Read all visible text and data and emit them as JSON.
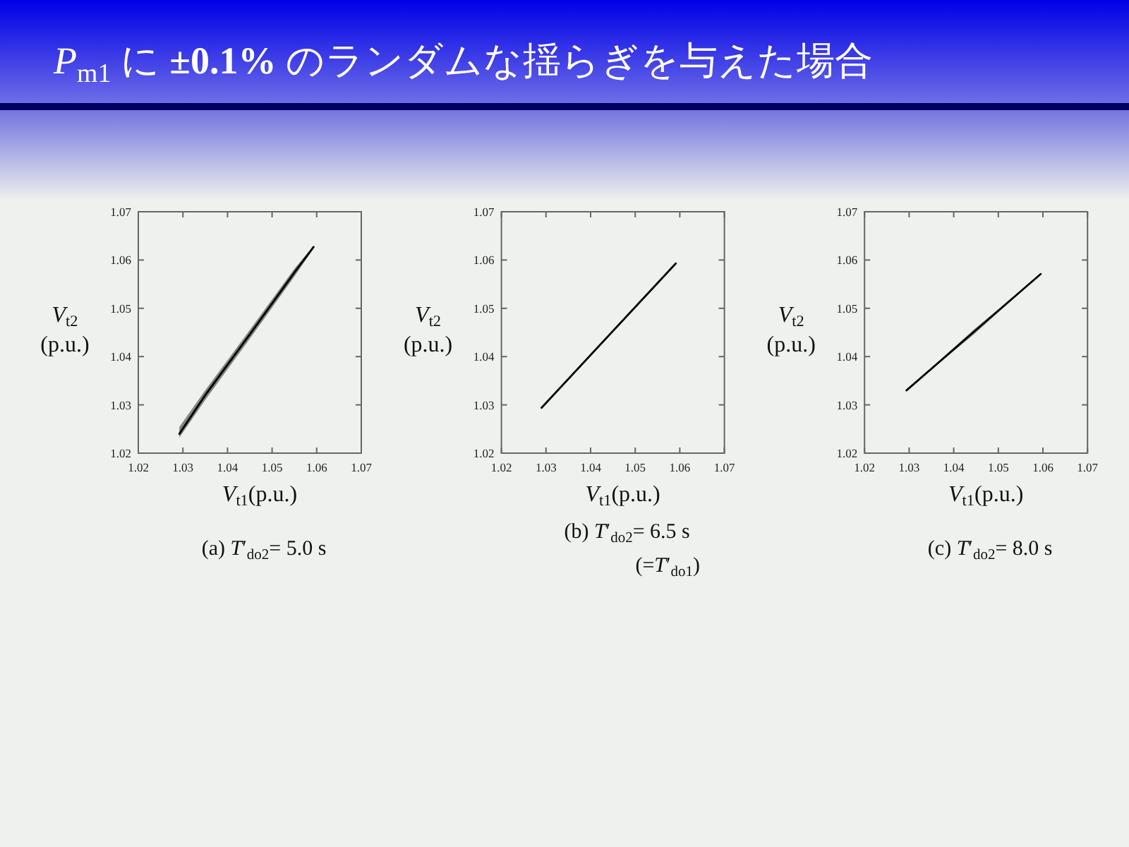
{
  "chart_data": [
    {
      "type": "line",
      "title": "*P*$_{m1}$ に **±0.1%** のランダムな揺らぎを与えた場合",
      "xlabel": "*V*$_{t1}$(p.u.)",
      "ylabel": "*V*$_{t2}$ (p.u.)",
      "annotations": [
        "(a) *T*′$_{do2}$= 5.0 s"
      ],
      "xlim": [
        1.02,
        1.07
      ],
      "ylim": [
        1.02,
        1.07
      ],
      "xticks": [
        1.02,
        1.03,
        1.04,
        1.05,
        1.06,
        1.07
      ],
      "yticks": [
        1.02,
        1.03,
        1.04,
        1.05,
        1.06,
        1.07
      ],
      "series": [
        {
          "color": "#000000",
          "x": [
            1.0292,
            1.035,
            1.045,
            1.055,
            1.0593
          ],
          "values": [
            1.024,
            1.032,
            1.0446,
            1.0574,
            1.0627
          ],
          "lower": [
            1.0232,
            1.031,
            1.0437,
            1.0566,
            1.0624
          ],
          "upper": [
            1.0254,
            1.033,
            1.0455,
            1.0582,
            1.0629
          ]
        }
      ]
    },
    {
      "type": "line",
      "xlabel": "*V*$_{t1}$(p.u.)",
      "ylabel": "*V*$_{t2}$ (p.u.)",
      "annotations": [
        "(b) *T*′$_{do2}$= 6.5 s",
        "(=*T*′$_{do1}$)"
      ],
      "xlim": [
        1.02,
        1.07
      ],
      "ylim": [
        1.02,
        1.07
      ],
      "xticks": [
        1.02,
        1.03,
        1.04,
        1.05,
        1.06,
        1.07
      ],
      "yticks": [
        1.02,
        1.03,
        1.04,
        1.05,
        1.06,
        1.07
      ],
      "series": [
        {
          "color": "#000000",
          "x": [
            1.029,
            1.0591
          ],
          "values": [
            1.0294,
            1.0593
          ]
        }
      ]
    },
    {
      "type": "line",
      "xlabel": "*V*$_{t1}$(p.u.)",
      "ylabel": "*V*$_{t2}$ (p.u.)",
      "annotations": [
        "(c) *T*′$_{do2}$= 8.0 s"
      ],
      "xlim": [
        1.02,
        1.07
      ],
      "ylim": [
        1.02,
        1.07
      ],
      "xticks": [
        1.02,
        1.03,
        1.04,
        1.05,
        1.06,
        1.07
      ],
      "yticks": [
        1.02,
        1.03,
        1.04,
        1.05,
        1.06,
        1.07
      ],
      "series": [
        {
          "color": "#000000",
          "x": [
            1.0294,
            1.0445,
            1.0595
          ],
          "values": [
            1.033,
            1.0451,
            1.0571
          ],
          "lower": [
            1.033,
            1.0446,
            1.0571
          ],
          "upper": [
            1.033,
            1.0456,
            1.0571
          ]
        }
      ]
    }
  ]
}
